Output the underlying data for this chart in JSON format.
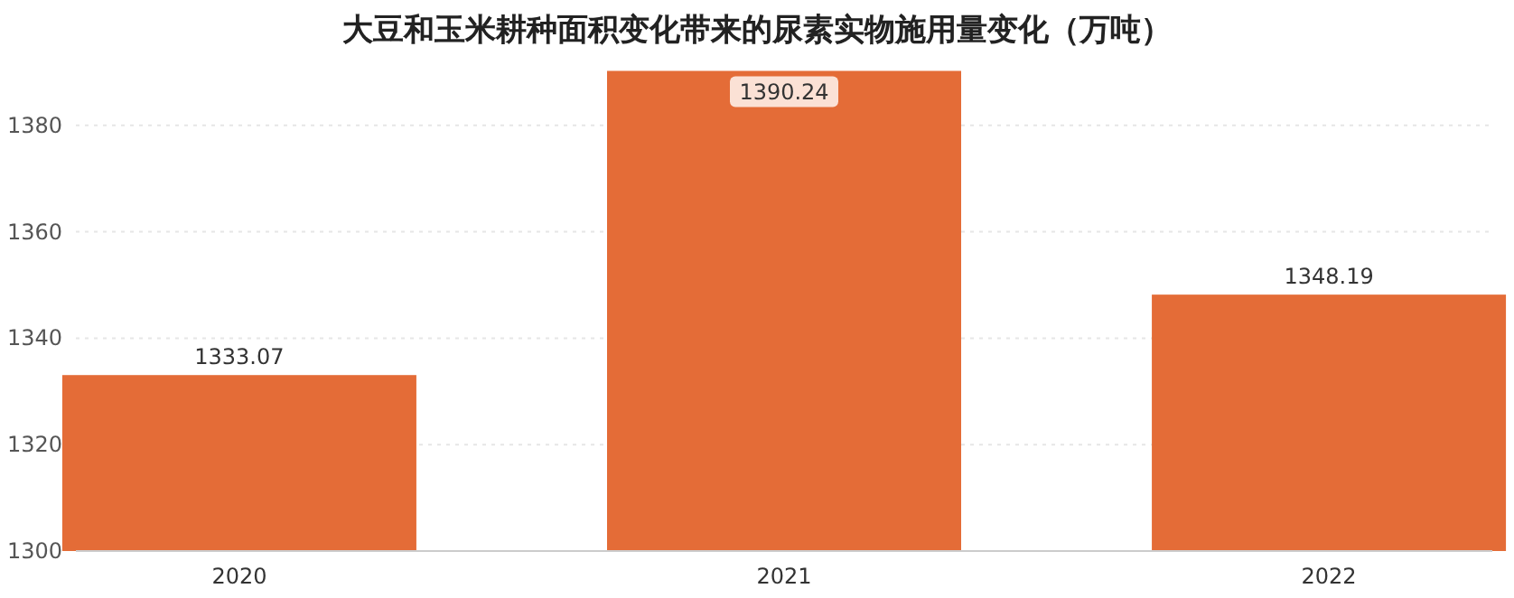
{
  "chart_data": {
    "type": "bar",
    "title": "大豆和玉米耕种面积变化带来的尿素实物施用量变化（万吨）",
    "categories": [
      "2020",
      "2021",
      "2022"
    ],
    "values": [
      1333.07,
      1390.24,
      1348.19
    ],
    "color": "#e46c37",
    "ylim": [
      1300,
      1391
    ],
    "yticks": [
      1300,
      1320,
      1340,
      1360,
      1380
    ],
    "grid": "y",
    "data_labels": true
  }
}
